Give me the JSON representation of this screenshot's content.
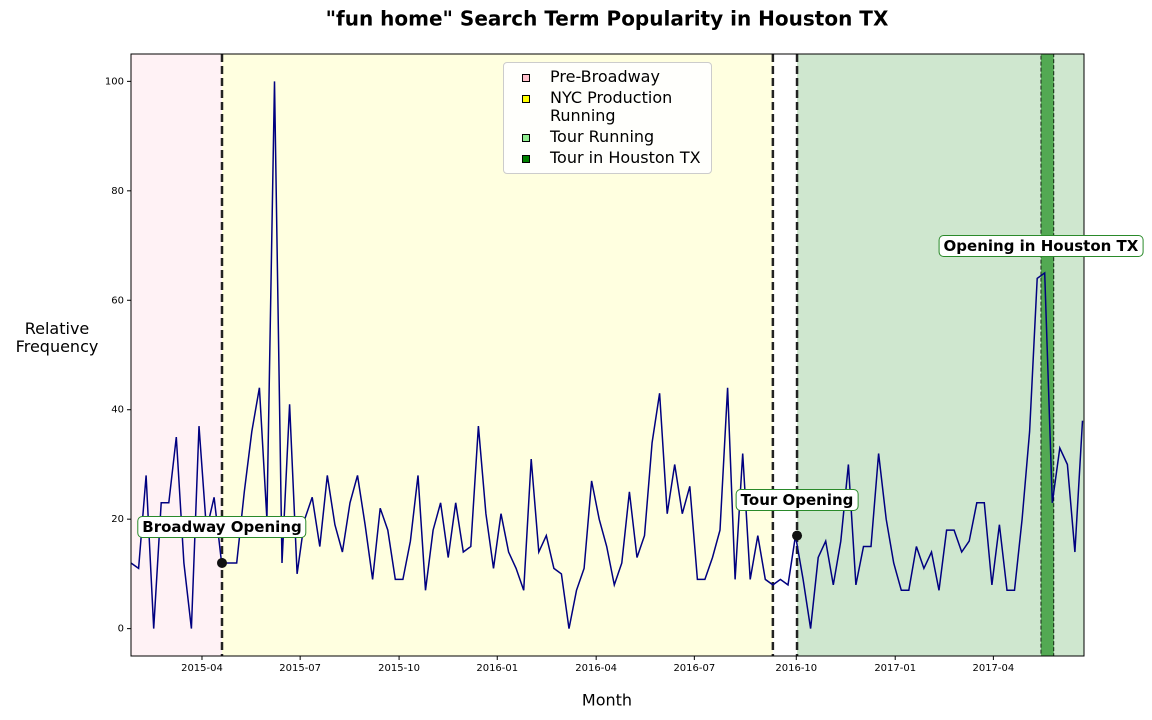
{
  "chart_data": {
    "type": "line",
    "title": "\"fun home\" Search Term Popularity in Houston TX",
    "x_label": "Month",
    "y_label": "Relative Frequency",
    "series": [
      {
        "name": "fun home",
        "color": "#000080",
        "values": [
          12,
          11,
          28,
          0,
          23,
          23,
          35,
          12,
          0,
          37,
          18,
          24,
          12,
          12,
          12,
          25,
          36,
          44,
          20,
          100,
          12,
          41,
          10,
          20,
          24,
          15,
          28,
          19,
          14,
          23,
          28,
          19,
          9,
          22,
          18,
          9,
          9,
          16,
          28,
          7,
          18,
          23,
          13,
          23,
          14,
          15,
          37,
          21,
          11,
          21,
          14,
          11,
          7,
          31,
          14,
          17,
          11,
          10,
          0,
          7,
          11,
          27,
          20,
          15,
          8,
          12,
          25,
          13,
          17,
          34,
          43,
          21,
          30,
          21,
          26,
          9,
          9,
          13,
          18,
          44,
          9,
          32,
          9,
          17,
          9,
          8,
          9,
          8,
          17,
          9,
          0,
          13,
          16,
          8,
          16,
          30,
          8,
          15,
          15,
          32,
          20,
          12,
          7,
          7,
          15,
          11,
          14,
          7,
          18,
          18,
          14,
          16,
          23,
          23,
          8,
          19,
          7,
          7,
          20,
          36,
          64,
          65,
          23,
          33,
          30,
          14,
          38
        ]
      }
    ],
    "xlim": [
      0,
      126.2
    ],
    "ylim": [
      -5,
      105
    ],
    "xticks": [
      {
        "value": 9.4,
        "label": "2015-04"
      },
      {
        "value": 22.4,
        "label": "2015-07"
      },
      {
        "value": 35.5,
        "label": "2015-10"
      },
      {
        "value": 48.5,
        "label": "2016-01"
      },
      {
        "value": 61.6,
        "label": "2016-04"
      },
      {
        "value": 74.6,
        "label": "2016-07"
      },
      {
        "value": 88.1,
        "label": "2016-10"
      },
      {
        "value": 101.2,
        "label": "2017-01"
      },
      {
        "value": 114.2,
        "label": "2017-04"
      }
    ],
    "yticks": [
      0,
      20,
      40,
      60,
      80,
      100
    ],
    "spans": [
      {
        "name": "Pre-Broadway",
        "color": "pink",
        "opacity": 0.2,
        "start": 0,
        "end": 12.05
      },
      {
        "name": "NYC Production Running",
        "color": "yellow",
        "opacity": 0.12,
        "start": 12.05,
        "end": 85.0
      },
      {
        "name": "Tour Running",
        "color": "green",
        "opacity": 0.19,
        "start": 88.2,
        "end": 126.2
      },
      {
        "name": "Tour in Houston TX",
        "color": "green",
        "opacity": 0.6,
        "start": 120.5,
        "end": 122.2
      }
    ],
    "legend_colors": [
      "pink",
      "yellow",
      "lightgreen",
      "green"
    ],
    "vlines": [
      12.05,
      85.0,
      88.2
    ],
    "annotations": [
      {
        "text": "Broadway Opening",
        "x": 12.05,
        "y": 12,
        "text_y": 18.5
      },
      {
        "text": "Tour Opening",
        "x": 88.2,
        "y": 17,
        "text_y": 23.5
      },
      {
        "text": "Opening in Houston TX",
        "x": 120.5,
        "text_y": 70
      }
    ]
  }
}
